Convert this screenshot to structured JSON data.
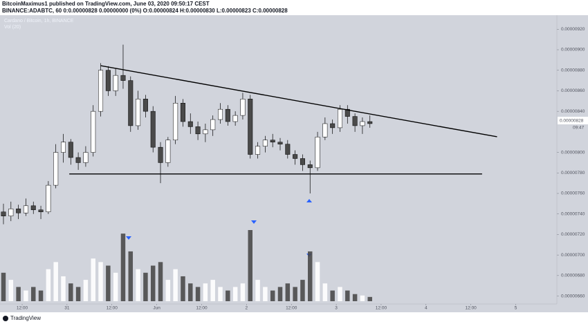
{
  "header": {
    "line1": "BitcoinMaximus1 published on TradingView.com, June 03, 2020 09:50:17 CEST",
    "line2": "BINANCE:ADABTC, 60  0:0.00000828 0.00000000 (0%) O:0.00000824 H:0.00000830 L:0.00000823 C:0.00000828"
  },
  "footer": "TradingView",
  "chart_data": {
    "type": "candlestick",
    "title": "Cardano / Bitcoin, 1h, BINANCE",
    "volume_title": "Vol (20)",
    "countdown": "09:47",
    "up_color": "#ffffff",
    "down_color": "#4a4a4a",
    "line_color": "#000000",
    "grid": false,
    "x": [
      0,
      2,
      4,
      6,
      8,
      10,
      12,
      14,
      16,
      18,
      20,
      22,
      24,
      26,
      28,
      30,
      32,
      34,
      36,
      38,
      40,
      42,
      44,
      46,
      48,
      50,
      52,
      54,
      56,
      58,
      60,
      62,
      64,
      66,
      68,
      70,
      72,
      74,
      76,
      78,
      80,
      82,
      84,
      86,
      88,
      90,
      92,
      94,
      96,
      98
    ],
    "open": [
      7.42e-06,
      7.38e-06,
      7.45e-06,
      7.41e-06,
      7.48e-06,
      7.44e-06,
      7.42e-06,
      7.68e-06,
      8e-06,
      8.1e-06,
      7.95e-06,
      7.9e-06,
      8e-06,
      8.4e-06,
      8.8e-06,
      8.6e-06,
      8.75e-06,
      8.7e-06,
      8.26e-06,
      8.52e-06,
      8.4e-06,
      8.05e-06,
      7.9e-06,
      8.12e-06,
      8.48e-06,
      8.3e-06,
      8.25e-06,
      8.18e-06,
      8.22e-06,
      8.32e-06,
      8.42e-06,
      8.3e-06,
      8.36e-06,
      8.52e-06,
      7.98e-06,
      8.06e-06,
      8.12e-06,
      8.1e-06,
      8.08e-06,
      7.98e-06,
      7.94e-06,
      7.88e-06,
      7.85e-06,
      8.15e-06,
      8.28e-06,
      8.24e-06,
      8.42e-06,
      8.35e-06,
      8.26e-06,
      8.3e-06
    ],
    "high": [
      7.5e-06,
      7.52e-06,
      7.49e-06,
      7.55e-06,
      7.52e-06,
      7.48e-06,
      7.72e-06,
      8.08e-06,
      8.18e-06,
      8.13e-06,
      8e-06,
      8.06e-06,
      8.46e-06,
      8.87e-06,
      8.84e-06,
      8.82e-06,
      9.05e-06,
      8.74e-06,
      8.6e-06,
      8.56e-06,
      8.45e-06,
      8.1e-06,
      8.15e-06,
      8.55e-06,
      8.52e-06,
      8.38e-06,
      8.3e-06,
      8.28e-06,
      8.36e-06,
      8.48e-06,
      8.46e-06,
      8.4e-06,
      8.58e-06,
      8.56e-06,
      8.1e-06,
      8.16e-06,
      8.18e-06,
      8.14e-06,
      8.12e-06,
      8.02e-06,
      7.98e-06,
      7.92e-06,
      8.2e-06,
      8.34e-06,
      8.32e-06,
      8.46e-06,
      8.46e-06,
      8.38e-06,
      8.34e-06,
      8.36e-06
    ],
    "low": [
      7.3e-06,
      7.33e-06,
      7.35e-06,
      7.38e-06,
      7.4e-06,
      7.35e-06,
      7.4e-06,
      7.65e-06,
      7.9e-06,
      7.88e-06,
      7.83e-06,
      7.86e-06,
      7.96e-06,
      8.35e-06,
      8.55e-06,
      8.55e-06,
      8.62e-06,
      8.2e-06,
      8.22e-06,
      8.34e-06,
      8e-06,
      7.7e-06,
      7.86e-06,
      8.08e-06,
      8.25e-06,
      8.18e-06,
      8.12e-06,
      8.1e-06,
      8.16e-06,
      8.28e-06,
      8.26e-06,
      8.26e-06,
      8.32e-06,
      7.94e-06,
      7.94e-06,
      8e-06,
      8.05e-06,
      8.02e-06,
      7.94e-06,
      7.88e-06,
      7.82e-06,
      7.6e-06,
      7.82e-06,
      8.12e-06,
      8.18e-06,
      8.2e-06,
      8.28e-06,
      8.2e-06,
      8.18e-06,
      8.24e-06
    ],
    "close": [
      7.38e-06,
      7.45e-06,
      7.41e-06,
      7.48e-06,
      7.44e-06,
      7.42e-06,
      7.68e-06,
      8e-06,
      8.1e-06,
      7.95e-06,
      7.9e-06,
      8e-06,
      8.4e-06,
      8.8e-06,
      8.6e-06,
      8.75e-06,
      8.7e-06,
      8.26e-06,
      8.52e-06,
      8.4e-06,
      8.05e-06,
      7.9e-06,
      8.12e-06,
      8.48e-06,
      8.3e-06,
      8.25e-06,
      8.18e-06,
      8.22e-06,
      8.32e-06,
      8.42e-06,
      8.3e-06,
      8.36e-06,
      8.52e-06,
      7.98e-06,
      8.06e-06,
      8.12e-06,
      8.1e-06,
      8.08e-06,
      7.98e-06,
      7.94e-06,
      7.88e-06,
      7.85e-06,
      8.15e-06,
      8.28e-06,
      8.24e-06,
      8.42e-06,
      8.35e-06,
      8.26e-06,
      8.3e-06,
      8.28e-06
    ],
    "volume": [
      40,
      30,
      20,
      15,
      20,
      15,
      45,
      55,
      35,
      25,
      20,
      30,
      60,
      55,
      50,
      40,
      95,
      70,
      45,
      40,
      50,
      55,
      30,
      45,
      35,
      25,
      20,
      25,
      30,
      20,
      15,
      20,
      25,
      100,
      30,
      20,
      15,
      20,
      25,
      20,
      30,
      70,
      55,
      25,
      15,
      20,
      15,
      10,
      8,
      6
    ],
    "vlim": [
      0,
      100
    ],
    "trendlines": [
      {
        "x": [
          26,
          132
        ],
        "y": [
          8.845e-06,
          8.152e-06
        ]
      },
      {
        "x": [
          17.6,
          128
        ],
        "y": [
          7.79e-06,
          7.79e-06
        ]
      }
    ],
    "xlim": [
      0,
      148
    ],
    "xticks": [
      {
        "value": 5,
        "label": "12:00"
      },
      {
        "value": 17,
        "label": "31"
      },
      {
        "value": 29,
        "label": "12:00"
      },
      {
        "value": 41,
        "label": "Jun"
      },
      {
        "value": 53,
        "label": "12:00"
      },
      {
        "value": 65,
        "label": "2"
      },
      {
        "value": 77,
        "label": "12:00"
      },
      {
        "value": 89,
        "label": "3"
      },
      {
        "value": 101,
        "label": "12:00"
      },
      {
        "value": 113,
        "label": "4"
      },
      {
        "value": 125,
        "label": "12:00"
      },
      {
        "value": 137,
        "label": "5"
      }
    ],
    "ylim": [
      6.55e-06,
      9.35e-06
    ],
    "yticks": [
      {
        "value": 9.2e-06,
        "label": "0.00000920"
      },
      {
        "value": 9e-06,
        "label": "0.00000900"
      },
      {
        "value": 8.8e-06,
        "label": "0.00000880"
      },
      {
        "value": 8.6e-06,
        "label": "0.00000860"
      },
      {
        "value": 8.4e-06,
        "label": "0.00000840"
      },
      {
        "value": 8e-06,
        "label": "0.00000800"
      },
      {
        "value": 7.8e-06,
        "label": "0.00000780"
      },
      {
        "value": 7.6e-06,
        "label": "0.00000760"
      },
      {
        "value": 7.4e-06,
        "label": "0.00000740"
      },
      {
        "value": 7.2e-06,
        "label": "0.00000720"
      },
      {
        "value": 7e-06,
        "label": "0.00000700"
      },
      {
        "value": 6.8e-06,
        "label": "0.00000680"
      },
      {
        "value": 6.6e-06,
        "label": "0.00000660"
      }
    ]
  }
}
